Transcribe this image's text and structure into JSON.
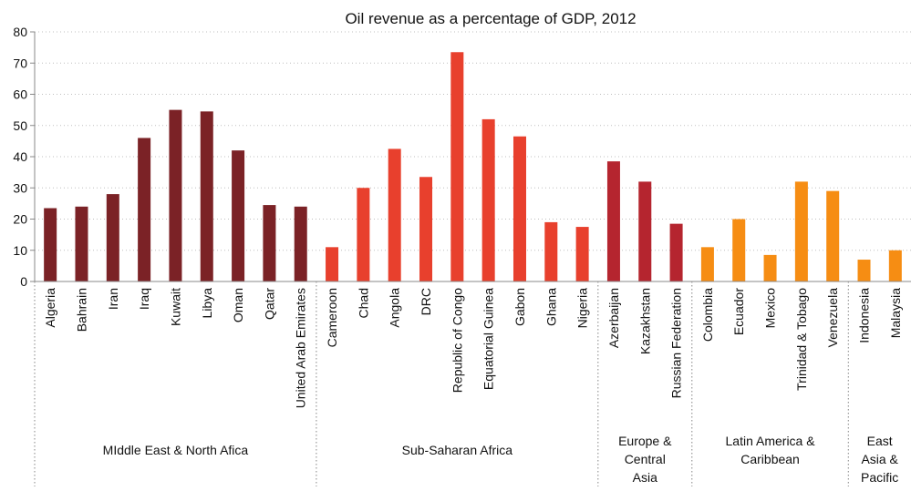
{
  "chart_data": {
    "type": "bar",
    "title": "Oil revenue as a percentage of GDP, 2012",
    "xlabel": "",
    "ylabel": "",
    "ylim": [
      0,
      80
    ],
    "yticks": [
      0,
      10,
      20,
      30,
      40,
      50,
      60,
      70,
      80
    ],
    "grid": "horizontal dotted",
    "legend": "none",
    "categories": [
      "Algeria",
      "Bahrain",
      "Iran",
      "Iraq",
      "Kuwait",
      "Libya",
      "Oman",
      "Qatar",
      "United Arab Emirates",
      "Cameroon",
      "Chad",
      "Angola",
      "DRC",
      "Republic of Congo",
      "Equatorial Guinea",
      "Gabon",
      "Ghana",
      "Nigeria",
      "Azerbaijan",
      "Kazakhstan",
      "Russian Federation",
      "Colombia",
      "Ecuador",
      "Mexico",
      "Trinidad & Tobago",
      "Venezuela",
      "Indonesia",
      "Malaysia"
    ],
    "values": [
      23.5,
      24,
      28,
      46,
      55,
      54.5,
      42,
      24.5,
      24,
      11,
      30,
      42.5,
      33.5,
      73.5,
      52,
      46.5,
      19,
      17.5,
      38.5,
      32,
      18.5,
      11,
      20,
      8.5,
      32,
      29,
      7,
      10
    ],
    "groups": [
      {
        "label": "MIddle East & North Afica",
        "lines": [
          "MIddle East & North Afica"
        ],
        "count": 9,
        "color": "#7b2226"
      },
      {
        "label": "Sub-Saharan Africa",
        "lines": [
          "Sub-Saharan Africa"
        ],
        "count": 9,
        "color": "#e8402d"
      },
      {
        "label": "Europe & Central Asia",
        "lines": [
          "Europe &",
          "Central",
          "Asia"
        ],
        "count": 3,
        "color": "#b5252f"
      },
      {
        "label": "Latin America & Caribbean",
        "lines": [
          "Latin America &",
          "Caribbean"
        ],
        "count": 5,
        "color": "#f68d13"
      },
      {
        "label": "East Asia & Pacific",
        "lines": [
          "East",
          "Asia &",
          "Pacific"
        ],
        "count": 2,
        "color": "#f68d13"
      }
    ]
  }
}
